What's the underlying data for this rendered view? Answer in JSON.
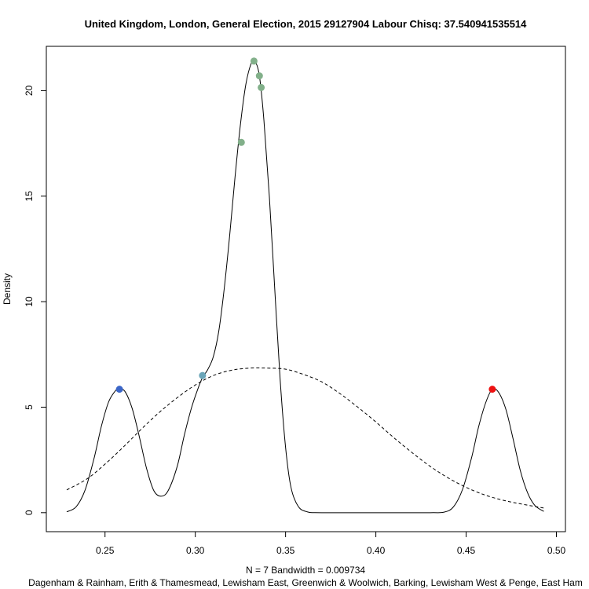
{
  "chart_data": {
    "type": "line",
    "title": "United Kingdom, London, General Election, 2015 29127904 Labour Chisq: 37.540941535514",
    "xlabel": "N = 7   Bandwidth = 0.009734",
    "ylabel": "Density",
    "subtitle": "Dagenham & Rainham, Erith & Thamesmead, Lewisham East, Greenwich & Woolwich, Barking, Lewisham West & Penge, East Ham",
    "xlim": [
      0.2175,
      0.505
    ],
    "ylim": [
      -0.9,
      22.1
    ],
    "x_ticks": [
      0.25,
      0.3,
      0.35,
      0.4,
      0.45,
      0.5
    ],
    "x_tick_labels": [
      "0.25",
      "0.30",
      "0.35",
      "0.40",
      "0.45",
      "0.50"
    ],
    "y_ticks": [
      0,
      5,
      10,
      15,
      20
    ],
    "y_tick_labels": [
      "0",
      "5",
      "10",
      "15",
      "20"
    ],
    "grid": false,
    "series": [
      {
        "style": "solid",
        "color": "#000000",
        "points": [
          [
            0.2288,
            0.04
          ],
          [
            0.234,
            0.28
          ],
          [
            0.239,
            1.08
          ],
          [
            0.244,
            2.6
          ],
          [
            0.248,
            4.1
          ],
          [
            0.252,
            5.25
          ],
          [
            0.256,
            5.8
          ],
          [
            0.258,
            5.85
          ],
          [
            0.261,
            5.75
          ],
          [
            0.265,
            4.95
          ],
          [
            0.269,
            3.6
          ],
          [
            0.273,
            2.1
          ],
          [
            0.277,
            1.05
          ],
          [
            0.281,
            0.78
          ],
          [
            0.285,
            1.05
          ],
          [
            0.29,
            2.2
          ],
          [
            0.294,
            3.7
          ],
          [
            0.298,
            5.0
          ],
          [
            0.302,
            6.0
          ],
          [
            0.304,
            6.4
          ],
          [
            0.307,
            6.8
          ],
          [
            0.31,
            7.4
          ],
          [
            0.313,
            8.6
          ],
          [
            0.316,
            10.6
          ],
          [
            0.319,
            13.1
          ],
          [
            0.322,
            15.9
          ],
          [
            0.325,
            18.4
          ],
          [
            0.328,
            20.3
          ],
          [
            0.331,
            21.3
          ],
          [
            0.333,
            21.4
          ],
          [
            0.3355,
            20.7
          ],
          [
            0.338,
            18.6
          ],
          [
            0.341,
            15.0
          ],
          [
            0.344,
            10.6
          ],
          [
            0.347,
            6.3
          ],
          [
            0.35,
            3.1
          ],
          [
            0.353,
            1.2
          ],
          [
            0.357,
            0.3
          ],
          [
            0.362,
            0.04
          ],
          [
            0.37,
            0.0
          ],
          [
            0.4,
            0.0
          ],
          [
            0.43,
            0.0
          ],
          [
            0.438,
            0.03
          ],
          [
            0.443,
            0.28
          ],
          [
            0.448,
            1.1
          ],
          [
            0.453,
            2.6
          ],
          [
            0.457,
            4.1
          ],
          [
            0.461,
            5.25
          ],
          [
            0.4645,
            5.85
          ],
          [
            0.468,
            5.7
          ],
          [
            0.472,
            4.9
          ],
          [
            0.476,
            3.5
          ],
          [
            0.48,
            2.0
          ],
          [
            0.484,
            0.95
          ],
          [
            0.488,
            0.35
          ],
          [
            0.493,
            0.06
          ]
        ]
      },
      {
        "style": "dashed",
        "color": "#000000",
        "points": [
          [
            0.2288,
            1.08
          ],
          [
            0.24,
            1.6
          ],
          [
            0.25,
            2.3
          ],
          [
            0.26,
            3.1
          ],
          [
            0.27,
            3.95
          ],
          [
            0.28,
            4.75
          ],
          [
            0.29,
            5.45
          ],
          [
            0.3,
            6.05
          ],
          [
            0.31,
            6.5
          ],
          [
            0.32,
            6.75
          ],
          [
            0.33,
            6.85
          ],
          [
            0.34,
            6.85
          ],
          [
            0.35,
            6.8
          ],
          [
            0.36,
            6.55
          ],
          [
            0.37,
            6.2
          ],
          [
            0.38,
            5.65
          ],
          [
            0.39,
            5.0
          ],
          [
            0.4,
            4.3
          ],
          [
            0.41,
            3.55
          ],
          [
            0.42,
            2.85
          ],
          [
            0.43,
            2.2
          ],
          [
            0.44,
            1.65
          ],
          [
            0.45,
            1.2
          ],
          [
            0.46,
            0.85
          ],
          [
            0.47,
            0.6
          ],
          [
            0.48,
            0.42
          ],
          [
            0.493,
            0.22
          ]
        ]
      }
    ],
    "markers": [
      {
        "x": 0.258,
        "y": 5.85,
        "color": "#3b66c8"
      },
      {
        "x": 0.304,
        "y": 6.5,
        "color": "#6aa5b8"
      },
      {
        "x": 0.3255,
        "y": 17.55,
        "color": "#82b08a"
      },
      {
        "x": 0.3325,
        "y": 21.4,
        "color": "#82b08a"
      },
      {
        "x": 0.3355,
        "y": 20.7,
        "color": "#82b08a"
      },
      {
        "x": 0.3365,
        "y": 20.15,
        "color": "#82b08a"
      },
      {
        "x": 0.4645,
        "y": 5.85,
        "color": "#ee1111"
      }
    ]
  }
}
